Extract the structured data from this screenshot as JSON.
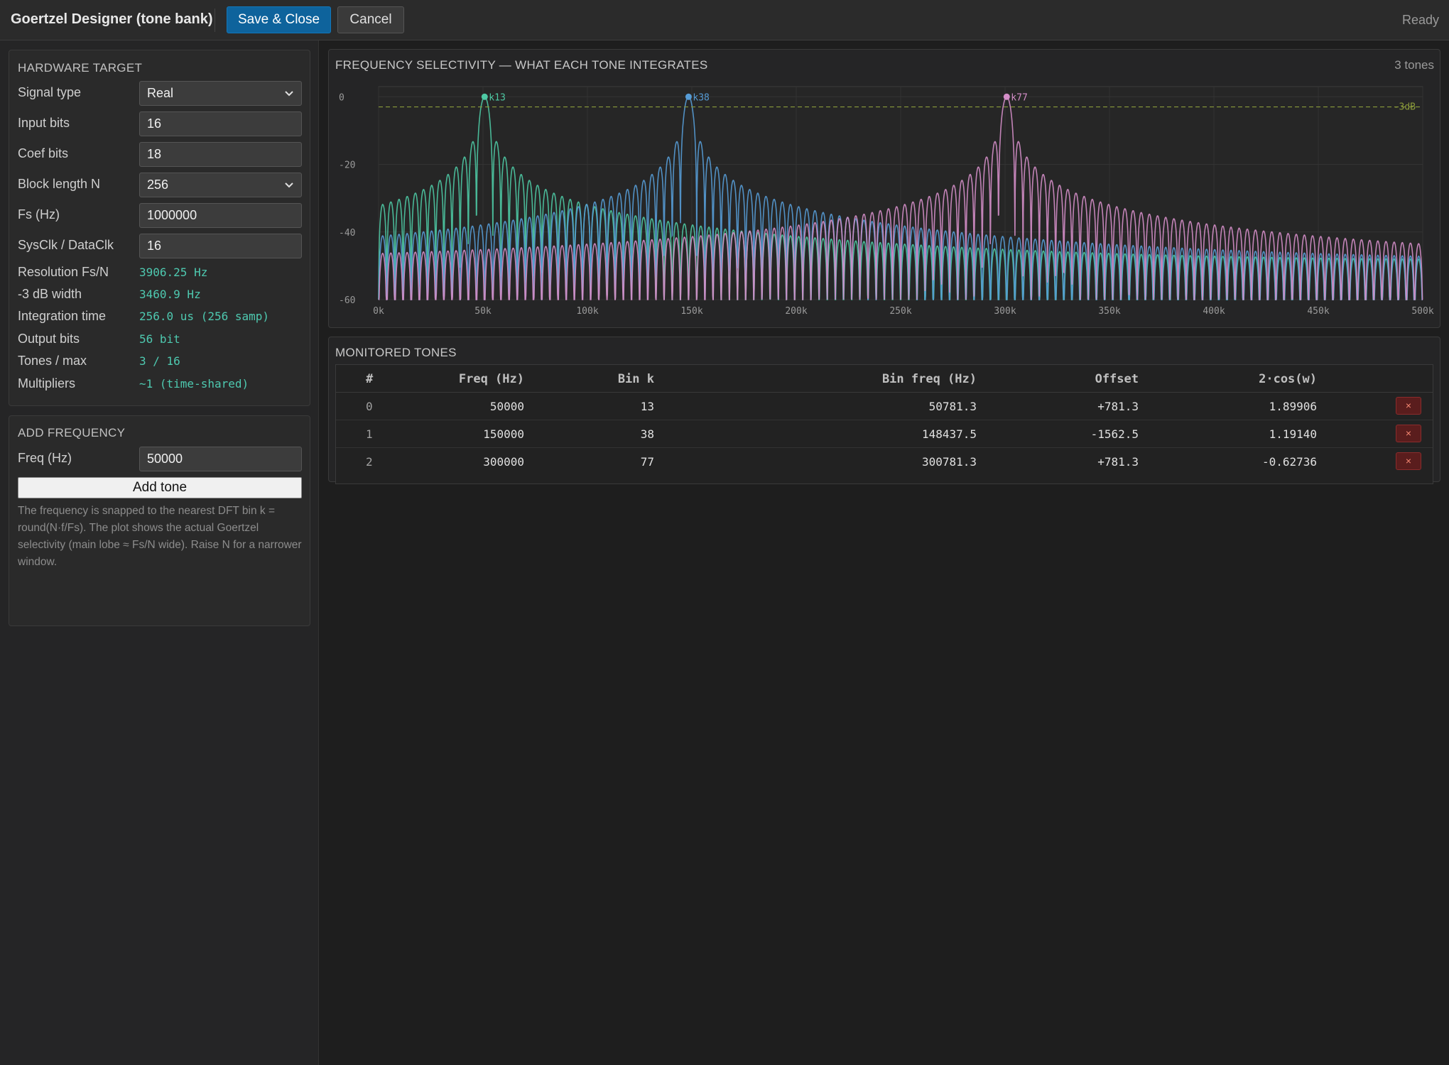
{
  "app": {
    "title": "Goertzel Designer (tone bank)",
    "status": "Ready"
  },
  "toolbar": {
    "save_label": "Save & Close",
    "cancel_label": "Cancel"
  },
  "hardware": {
    "title": "HARDWARE TARGET",
    "signal_type": {
      "label": "Signal type",
      "value": "Real"
    },
    "input_bits": {
      "label": "Input bits",
      "value": "16"
    },
    "coef_bits": {
      "label": "Coef bits",
      "value": "18"
    },
    "block_length": {
      "label": "Block length N",
      "value": "256"
    },
    "fs": {
      "label": "Fs (Hz)",
      "value": "1000000"
    },
    "sysclk": {
      "label": "SysClk / DataClk",
      "value": "16"
    },
    "resolution": {
      "label": "Resolution Fs/N",
      "value": "3906.25 Hz"
    },
    "width3db": {
      "label": "-3 dB width",
      "value": "3460.9 Hz"
    },
    "integration": {
      "label": "Integration time",
      "value": "256.0 us (256 samp)"
    },
    "output_bits": {
      "label": "Output bits",
      "value": "56 bit"
    },
    "tones_max": {
      "label": "Tones / max",
      "value": "3 / 16"
    },
    "multipliers": {
      "label": "Multipliers",
      "value": "~1 (time-shared)"
    }
  },
  "add_frequency": {
    "title": "ADD FREQUENCY",
    "freq_label": "Freq (Hz)",
    "freq_value": "50000",
    "button_label": "Add tone",
    "hint": "The frequency is snapped to the nearest DFT bin k = round(N·f/Fs). The plot shows the actual Goertzel selectivity (main lobe ≈ Fs/N wide). Raise N for a narrower window."
  },
  "chart_panel": {
    "title": "FREQUENCY SELECTIVITY — WHAT EACH TONE INTEGRATES",
    "count": "3 tones"
  },
  "chart_data": {
    "type": "line",
    "title": "FREQUENCY SELECTIVITY — WHAT EACH TONE INTEGRATES",
    "xlabel": "",
    "ylabel": "",
    "xlim": [
      0,
      500000
    ],
    "ylim": [
      -60,
      3
    ],
    "x_ticks": [
      "0k",
      "50k",
      "100k",
      "150k",
      "200k",
      "250k",
      "300k",
      "350k",
      "400k",
      "450k",
      "500k"
    ],
    "y_ticks": [
      "0",
      "-20",
      "-40",
      "-60"
    ],
    "grid": true,
    "N": 256,
    "fs": 1000000,
    "reference_line": {
      "label": "-3dB",
      "y": -3,
      "color": "#8a9a3a"
    },
    "series": [
      {
        "bin": 13,
        "marker_label": "k13",
        "peak_x": 50781.3,
        "peak_y": 0,
        "color": "#4ec9a4"
      },
      {
        "bin": 38,
        "marker_label": "k38",
        "peak_x": 148437.5,
        "peak_y": 0,
        "color": "#569cd6"
      },
      {
        "bin": 77,
        "marker_label": "k77",
        "peak_x": 300781.3,
        "peak_y": 0,
        "color": "#d48ec8"
      }
    ]
  },
  "tones": {
    "title": "MONITORED TONES",
    "columns": [
      "#",
      "Freq (Hz)",
      "Bin k",
      "Bin freq (Hz)",
      "Offset",
      "2·cos(w)"
    ],
    "delete_label": "×",
    "rows": [
      {
        "idx": "0",
        "freq": "50000",
        "bin": "13",
        "bin_freq": "50781.3",
        "offset": "+781.3",
        "coef": "1.89906"
      },
      {
        "idx": "1",
        "freq": "150000",
        "bin": "38",
        "bin_freq": "148437.5",
        "offset": "-1562.5",
        "coef": "1.19140"
      },
      {
        "idx": "2",
        "freq": "300000",
        "bin": "77",
        "bin_freq": "300781.3",
        "offset": "+781.3",
        "coef": "-0.62736"
      }
    ]
  }
}
